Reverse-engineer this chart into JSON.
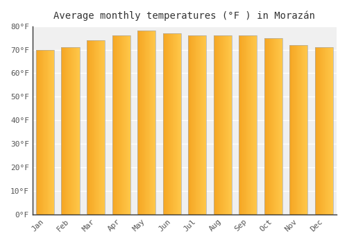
{
  "title": "Average monthly temperatures (°F ) in Morazán",
  "months": [
    "Jan",
    "Feb",
    "Mar",
    "Apr",
    "May",
    "Jun",
    "Jul",
    "Aug",
    "Sep",
    "Oct",
    "Nov",
    "Dec"
  ],
  "values": [
    70,
    71,
    74,
    76,
    78,
    77,
    76,
    76,
    76,
    75,
    72,
    71
  ],
  "bar_color_left": "#F5A623",
  "bar_color_right": "#FFC84A",
  "bar_edge_color": "#AAAAAA",
  "background_color": "#FFFFFF",
  "plot_bg_color": "#F0F0F0",
  "grid_color": "#FFFFFF",
  "text_color": "#555555",
  "ylim": [
    0,
    80
  ],
  "yticks": [
    0,
    10,
    20,
    30,
    40,
    50,
    60,
    70,
    80
  ],
  "ytick_labels": [
    "0°F",
    "10°F",
    "20°F",
    "30°F",
    "40°F",
    "50°F",
    "60°F",
    "70°F",
    "80°F"
  ],
  "title_fontsize": 10,
  "tick_fontsize": 8,
  "font_family": "monospace"
}
